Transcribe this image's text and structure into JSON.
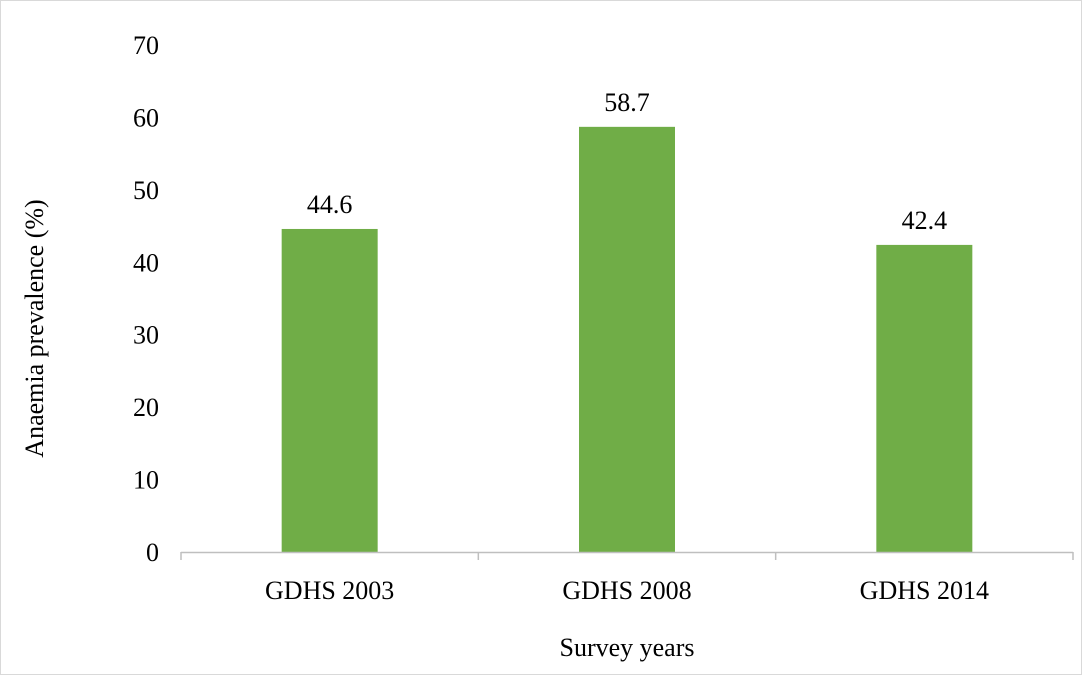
{
  "chart_data": {
    "type": "bar",
    "categories": [
      "GDHS 2003",
      "GDHS 2008",
      "GDHS 2014"
    ],
    "values": [
      44.6,
      58.7,
      42.4
    ],
    "value_labels": [
      "44.6",
      "58.7",
      "42.4"
    ],
    "xlabel": "Survey years",
    "ylabel": "Anaemia prevalence (%)",
    "ylim": [
      0,
      70
    ],
    "yticks": [
      0,
      10,
      20,
      30,
      40,
      50,
      60,
      70
    ],
    "ytick_labels": [
      "0",
      "10",
      "20",
      "30",
      "40",
      "50",
      "60",
      "70"
    ],
    "grid": false,
    "legend": "none",
    "bar_color": "#70ad47",
    "axis_color": "#bfbfbf"
  }
}
